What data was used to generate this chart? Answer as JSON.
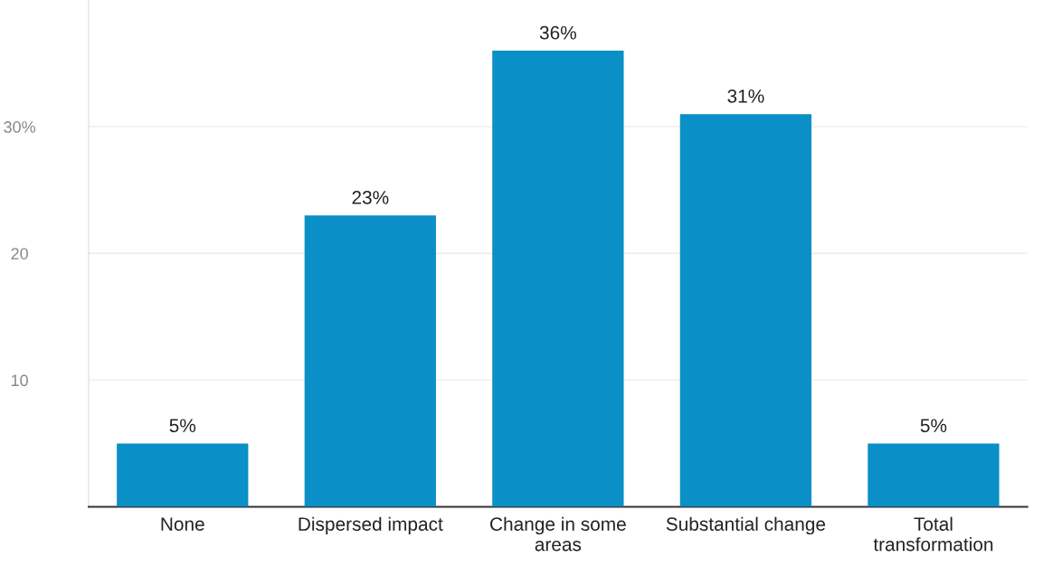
{
  "chart_data": {
    "type": "bar",
    "categories": [
      "None",
      "Dispersed impact",
      "Change in some areas",
      "Substantial change",
      "Total transformation"
    ],
    "values": [
      5,
      23,
      36,
      31,
      5
    ],
    "value_labels": [
      "5%",
      "23%",
      "36%",
      "31%",
      "5%"
    ],
    "color": "#0a8fc6",
    "ylim": [
      0,
      40
    ],
    "yticks": [
      10,
      20,
      {
        "value": 30,
        "label": "30%"
      }
    ],
    "grid": "y"
  }
}
